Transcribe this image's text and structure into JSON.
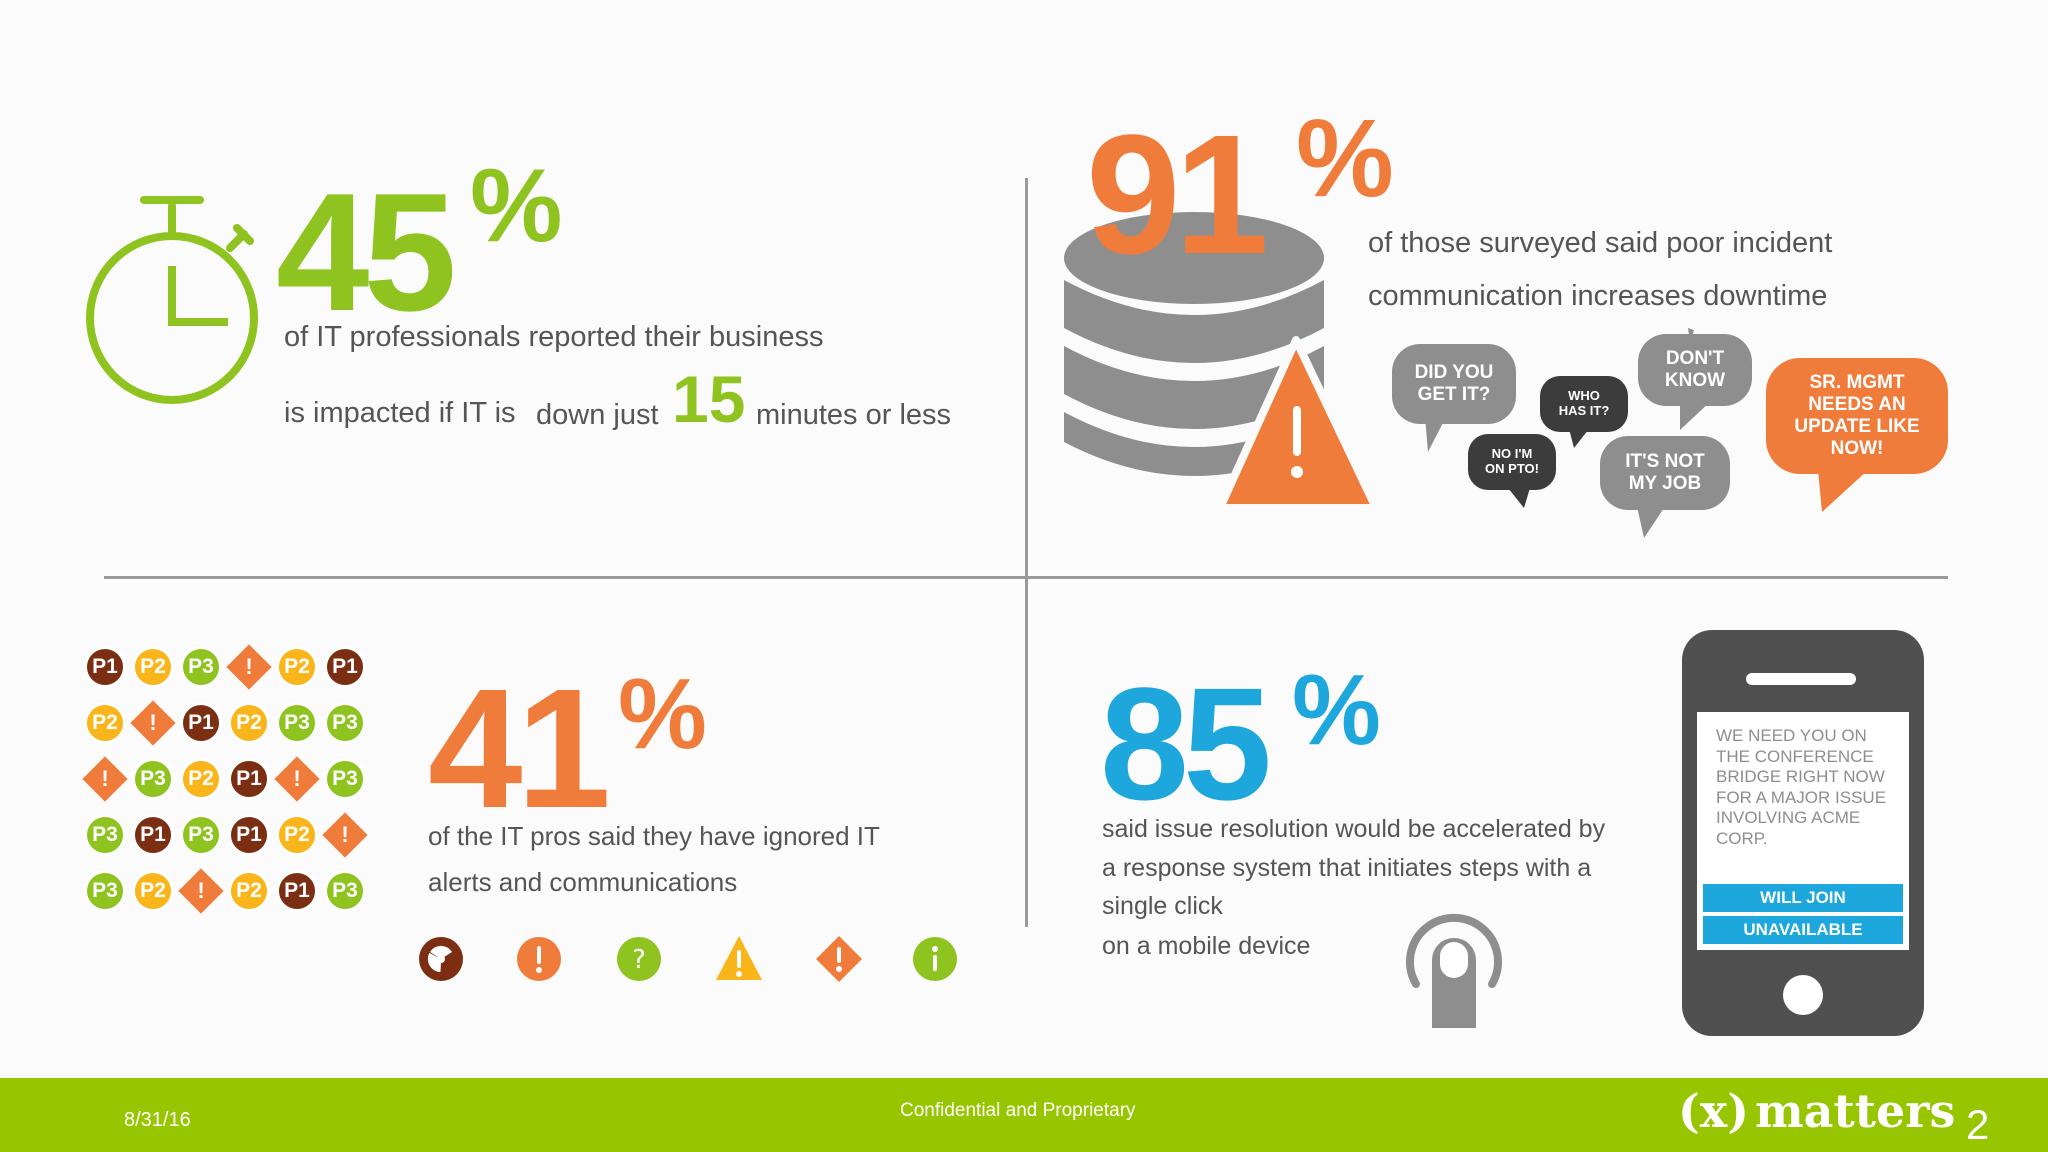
{
  "stat1": {
    "number": "45",
    "percent": "%",
    "line1": "of IT professionals reported their business",
    "line2a": "is impacted if IT is",
    "line2b": "down just",
    "minutes": "15",
    "line2c": "minutes or less"
  },
  "stat2": {
    "number": "91",
    "percent": "%",
    "line1": "of those surveyed said poor incident",
    "line2": "communication increases downtime",
    "bubbles": {
      "did_you_get_it": "DID YOU GET IT?",
      "no_im_on_pto": "NO I'M ON PTO!",
      "who_has_it": "WHO HAS IT?",
      "dont_know": "DON'T KNOW",
      "its_not_my_job": "IT'S NOT MY JOB",
      "sr_mgmt": "SR. MGMT NEEDS AN UPDATE LIKE NOW!"
    }
  },
  "stat3": {
    "number": "41",
    "percent": "%",
    "line1": "of the IT pros said they have ignored IT",
    "line2": "alerts and communications",
    "grid": [
      [
        "P1",
        "P2",
        "P3",
        "!",
        "P2",
        "P1"
      ],
      [
        "P2",
        "!",
        "P1",
        "P2",
        "P3",
        "P3"
      ],
      [
        "!",
        "P3",
        "P2",
        "P1",
        "!",
        "P3"
      ],
      [
        "P3",
        "P1",
        "P3",
        "P1",
        "P2",
        "!"
      ],
      [
        "P3",
        "P2",
        "!",
        "P2",
        "P1",
        "P3"
      ]
    ],
    "icons": [
      "radiation-icon",
      "exclamation-circle-icon",
      "question-circle-icon",
      "warning-triangle-icon",
      "exclamation-diamond-icon",
      "info-circle-icon"
    ]
  },
  "stat4": {
    "number": "85",
    "percent": "%",
    "line1": "said issue resolution would be accelerated by",
    "line2": "a response system that initiates steps with a",
    "line3": "single click",
    "line4": "on a mobile device"
  },
  "phone": {
    "message_lines": [
      "WE NEED YOU ON",
      "THE CONFERENCE",
      "BRIDGE RIGHT NOW",
      "FOR A MAJOR ISSUE",
      "INVOLVING ACME",
      "CORP."
    ],
    "button1": "WILL JOIN",
    "button2": "UNAVAILABLE"
  },
  "footer": {
    "date": "8/31/16",
    "confidential": "Confidential and Proprietary",
    "logo_x": "(x)",
    "logo_text": "matters",
    "page_number": "2"
  },
  "colors": {
    "green": "#8fc31f",
    "orange": "#f07c3b",
    "blue": "#1ea7dd",
    "brown": "#7b2e12",
    "yellow": "#f9b51a",
    "gray": "#8e8e8e",
    "dark": "#3c3c3c",
    "footer": "#97c500"
  }
}
